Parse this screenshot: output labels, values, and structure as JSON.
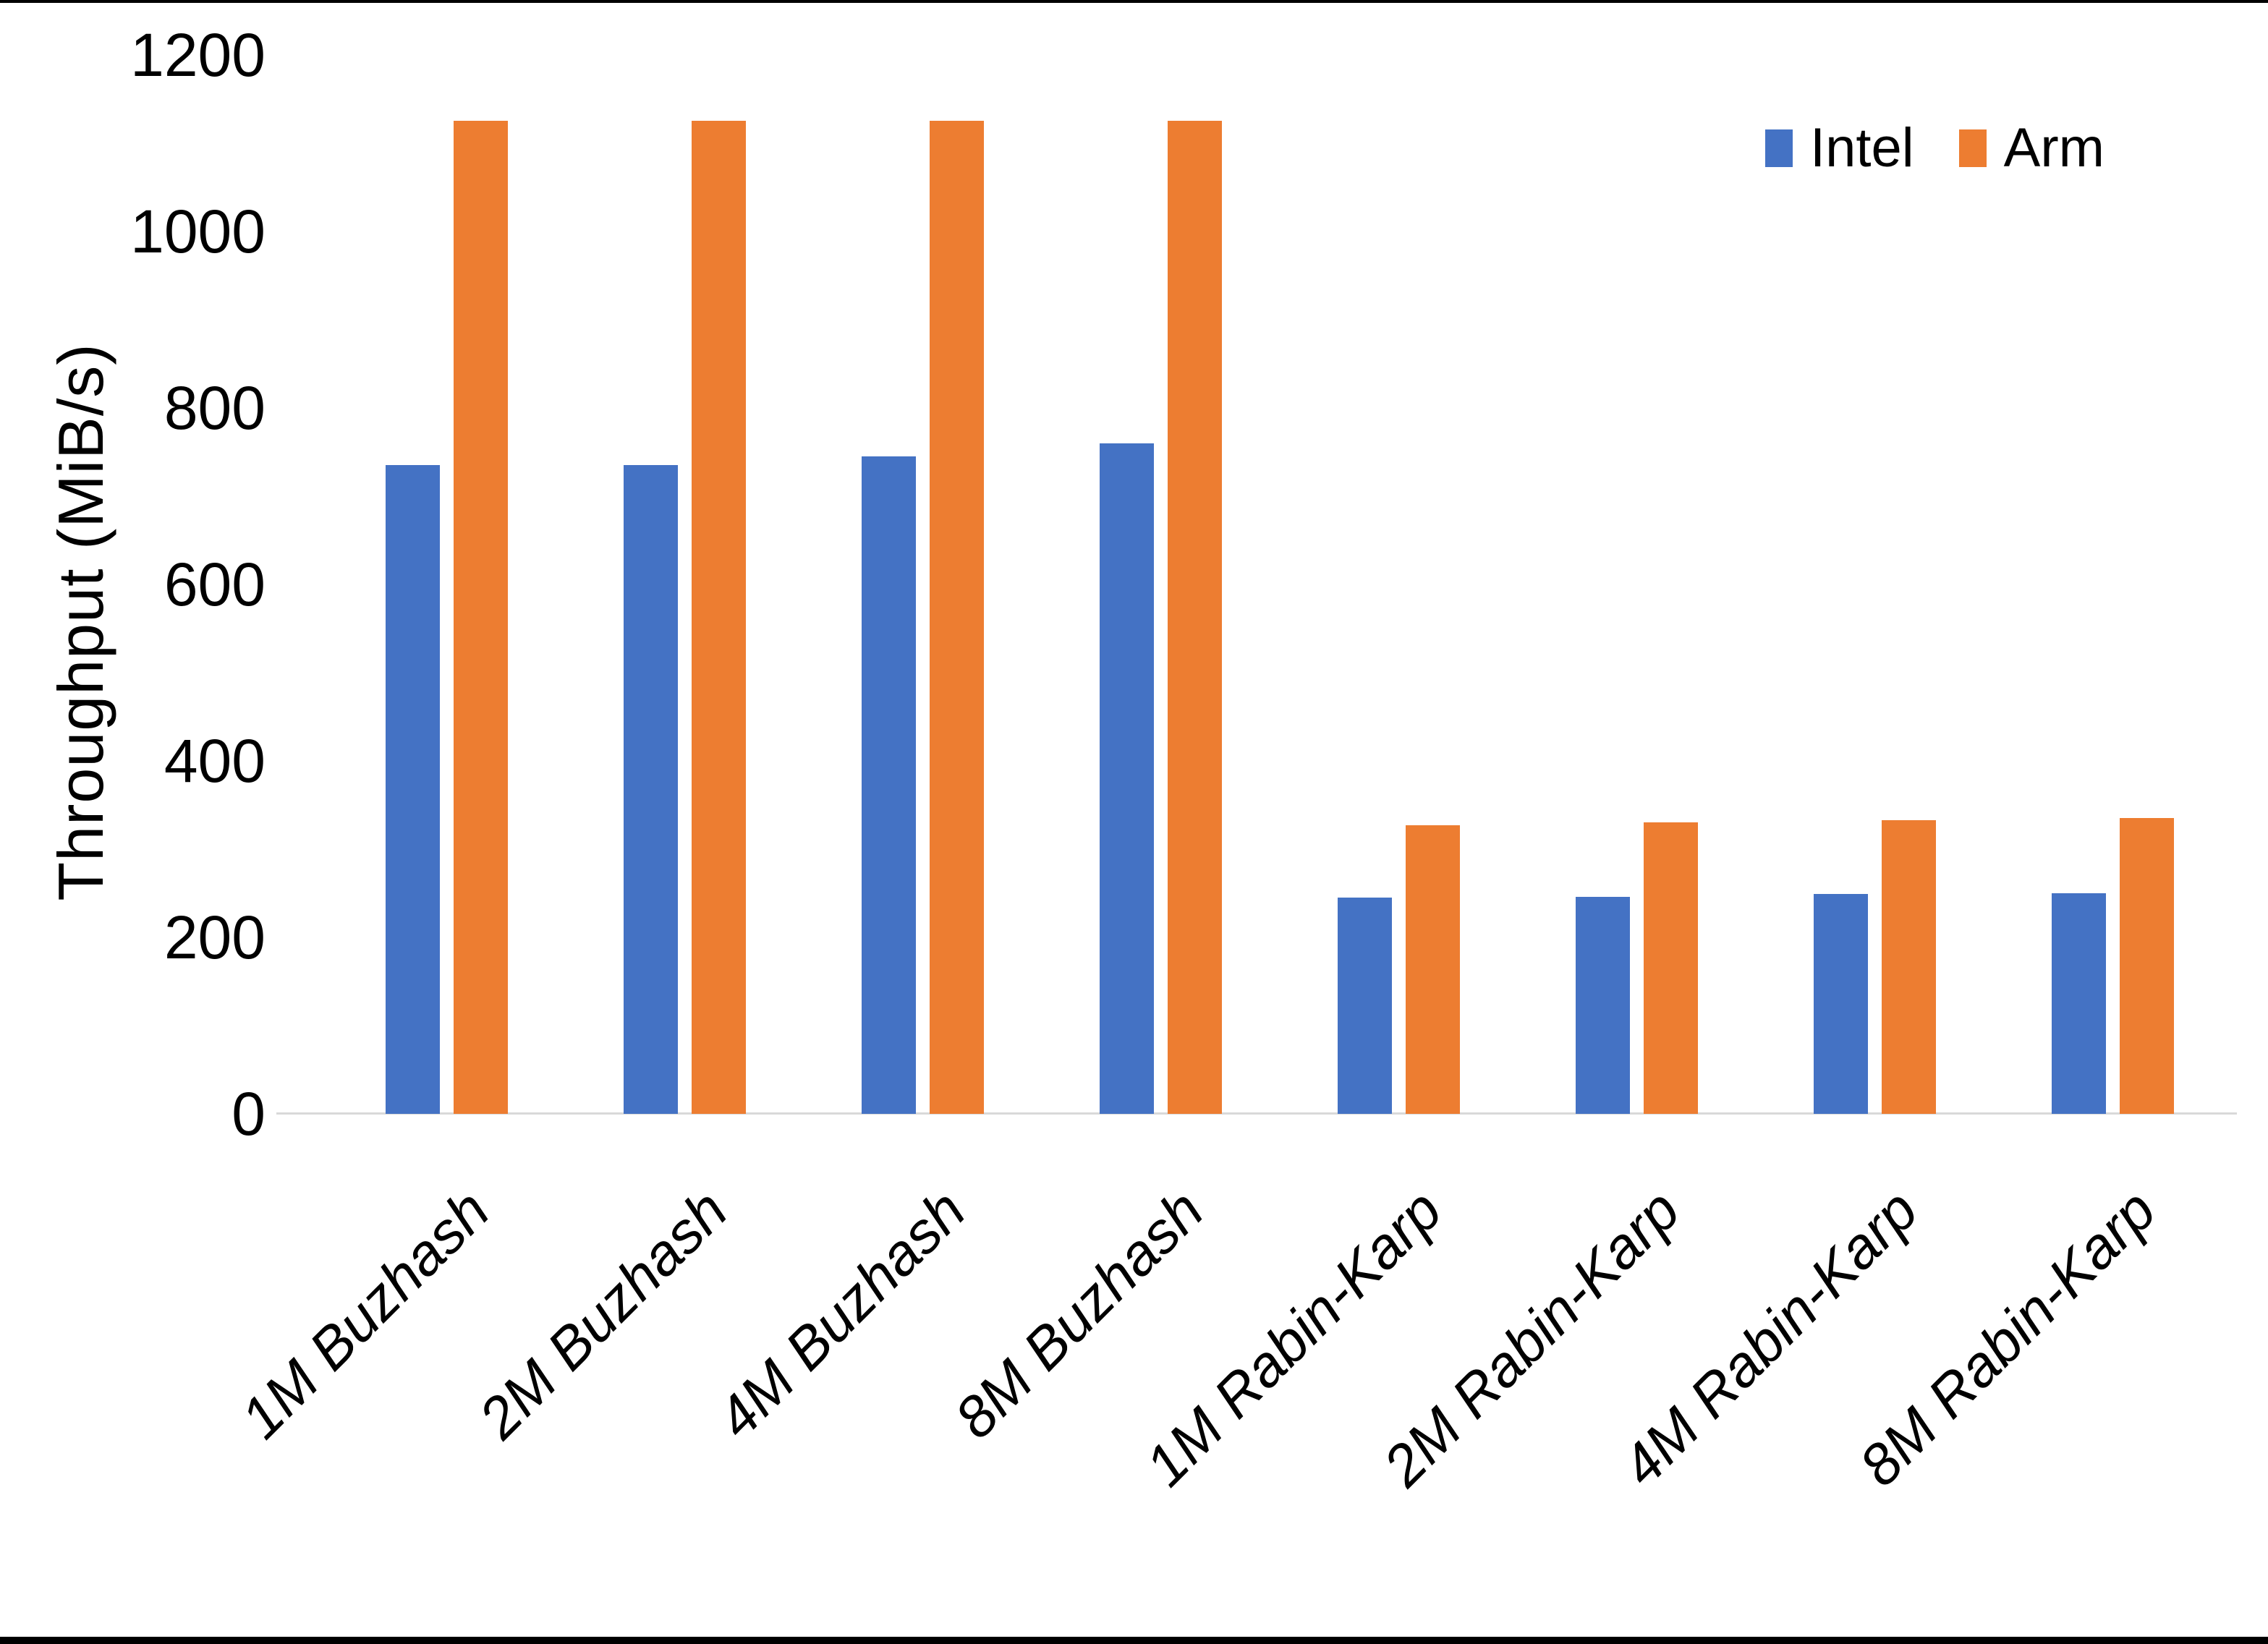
{
  "page": {
    "background": "#ffffff",
    "edge_bar_color": "#000000"
  },
  "chart_data": {
    "type": "bar",
    "title": "",
    "xlabel": "",
    "ylabel": "Throughput (MiB/s)",
    "ylim": [
      0,
      1200
    ],
    "yticks": [
      0,
      200,
      400,
      600,
      800,
      1000,
      1200
    ],
    "grid": false,
    "legend_position": "top-right",
    "axis_line_color": "#D9D9D9",
    "text_color": "#000000",
    "categories": [
      "1M Buzhash",
      "2M Buzhash",
      "4M Buzhash",
      "8M Buzhash",
      "1M Rabin-Karp",
      "2M Rabin-Karp",
      "4M Rabin-Karp",
      "8M Rabin-Karp"
    ],
    "series": [
      {
        "name": "Intel",
        "color": "#4472C4",
        "values": [
          735,
          735,
          745,
          760,
          245,
          246,
          249,
          250
        ]
      },
      {
        "name": "Arm",
        "color": "#ED7D31",
        "values": [
          1125,
          1125,
          1125,
          1125,
          327,
          330,
          333,
          335
        ]
      }
    ]
  }
}
